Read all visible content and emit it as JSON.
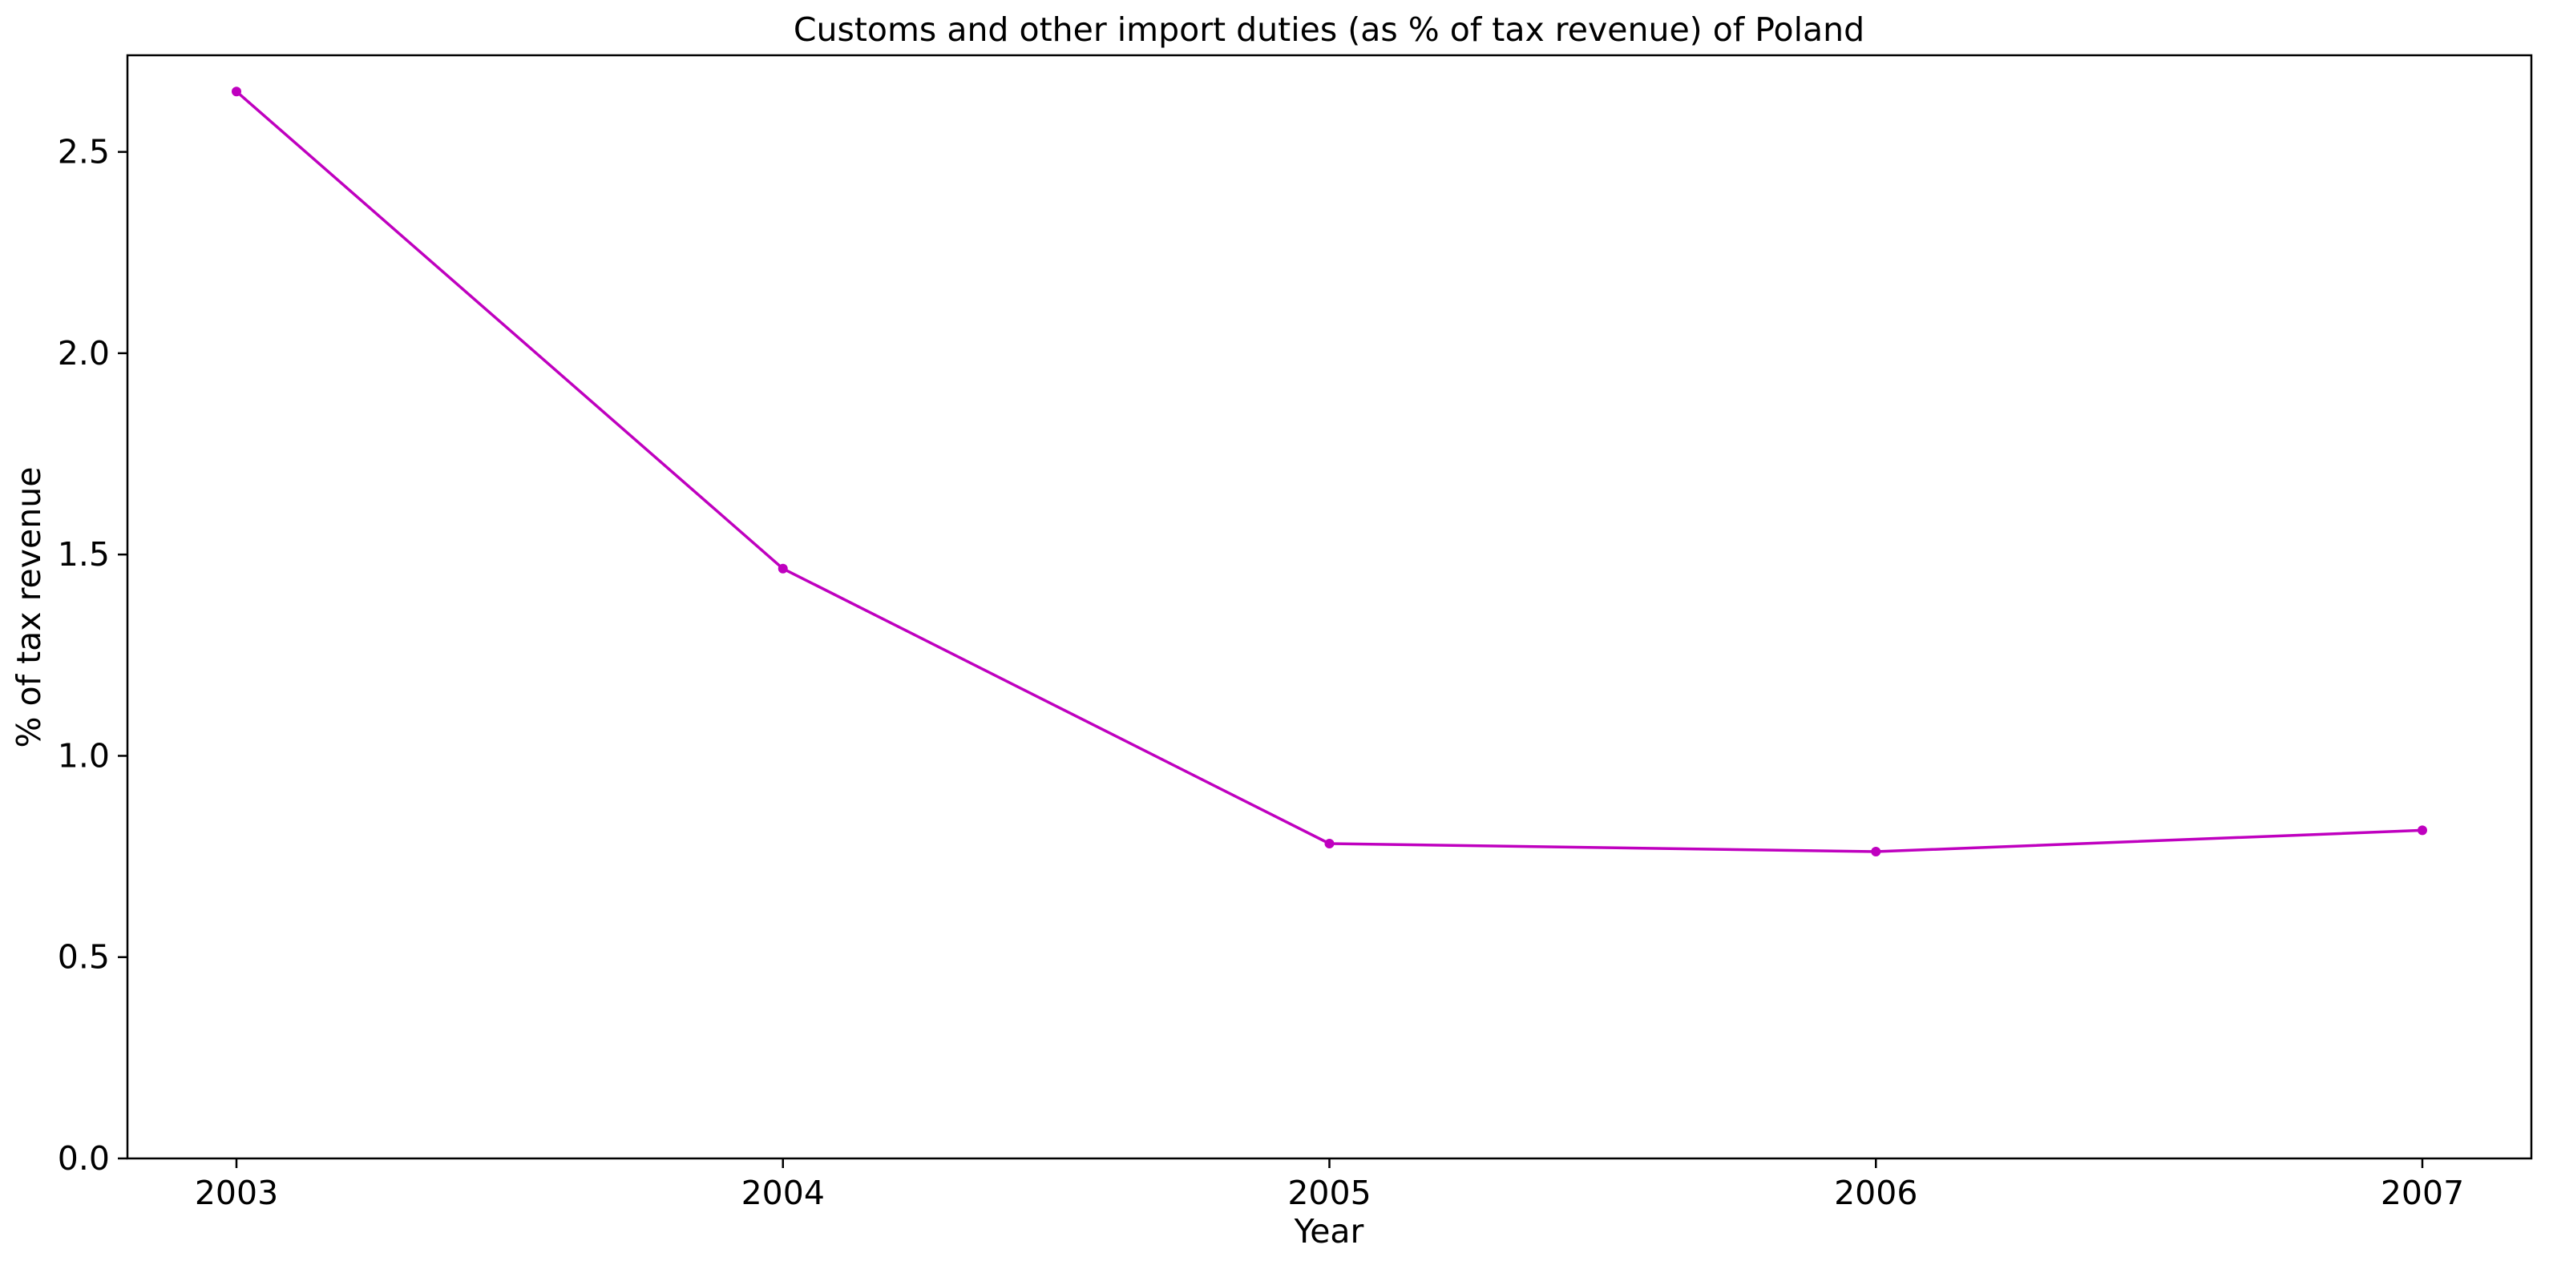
{
  "chart_data": {
    "type": "line",
    "title": "Customs and other import duties (as % of tax revenue) of Poland",
    "xlabel": "Year",
    "ylabel": "% of tax revenue",
    "x": [
      "2003",
      "2004",
      "2005",
      "2006",
      "2007"
    ],
    "series": [
      {
        "values": [
          2.65,
          1.465,
          0.782,
          0.762,
          0.815
        ],
        "color": "#bf00bf"
      }
    ],
    "ylim": [
      0,
      2.74
    ],
    "yticks": [
      "0.0",
      "0.5",
      "1.0",
      "1.5",
      "2.0",
      "2.5"
    ],
    "grid": false,
    "legend": "none"
  }
}
